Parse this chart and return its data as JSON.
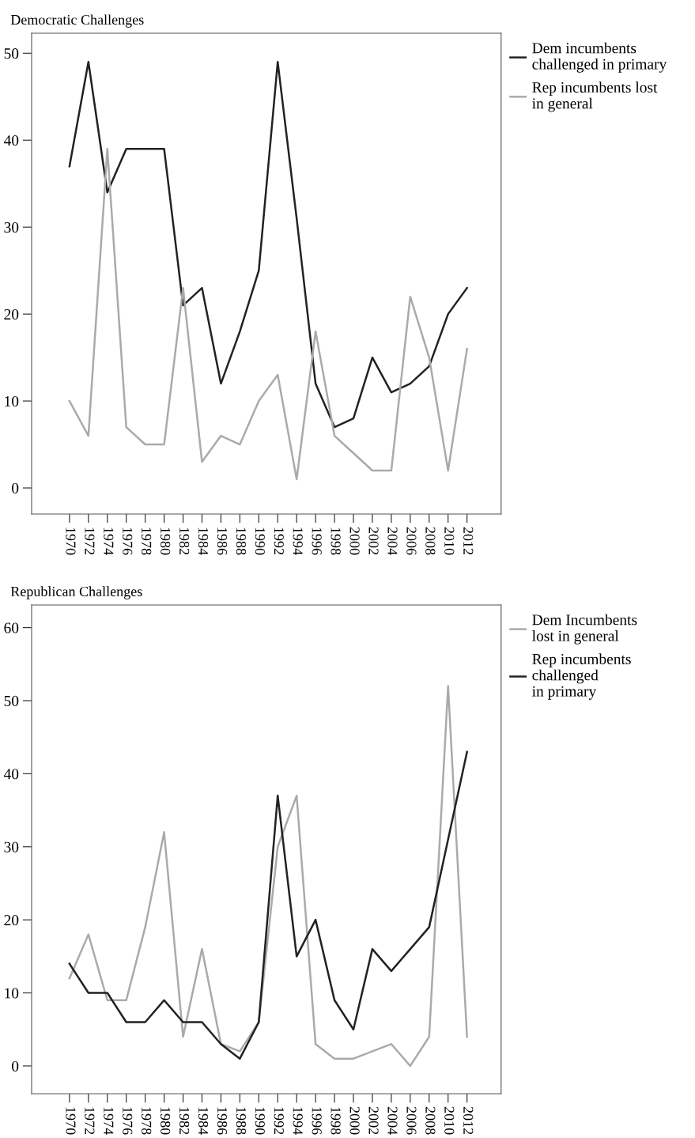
{
  "chart_data": [
    {
      "type": "line",
      "title": "Democratic Challenges",
      "categories": [
        "1970",
        "1972",
        "1974",
        "1976",
        "1978",
        "1980",
        "1982",
        "1984",
        "1986",
        "1988",
        "1990",
        "1992",
        "1994",
        "1996",
        "1998",
        "2000",
        "2002",
        "2004",
        "2006",
        "2008",
        "2010",
        "2012"
      ],
      "series": [
        {
          "name": "Dem incumbents\nchallenged in primary",
          "color": "#222222",
          "values": [
            37,
            49,
            34,
            39,
            39,
            39,
            21,
            23,
            12,
            18,
            25,
            49,
            31,
            12,
            7,
            8,
            15,
            11,
            12,
            14,
            20,
            23
          ]
        },
        {
          "name": "Rep incumbents lost\nin general",
          "color": "#aaaaaa",
          "values": [
            10,
            6,
            39,
            7,
            5,
            5,
            23,
            3,
            6,
            5,
            10,
            13,
            1,
            18,
            6,
            4,
            2,
            2,
            22,
            15,
            2,
            16
          ]
        }
      ],
      "ylim": [
        -3,
        52.3
      ],
      "yticks": [
        0,
        10,
        20,
        30,
        40,
        50
      ],
      "grid": false,
      "legend": "top right",
      "marker": "none",
      "line_style": "solid"
    },
    {
      "type": "line",
      "title": "Republican Challenges",
      "categories": [
        "1970",
        "1972",
        "1974",
        "1976",
        "1978",
        "1980",
        "1982",
        "1984",
        "1986",
        "1988",
        "1990",
        "1992",
        "1994",
        "1996",
        "1998",
        "2000",
        "2002",
        "2004",
        "2006",
        "2008",
        "2010",
        "2012"
      ],
      "series": [
        {
          "name": "Dem Incumbents\nlost in general",
          "color": "#aaaaaa",
          "values": [
            12,
            18,
            9,
            9,
            19,
            32,
            4,
            16,
            3,
            2,
            6,
            30,
            37,
            3,
            1,
            1,
            2,
            3,
            0,
            4,
            52,
            4
          ]
        },
        {
          "name": "Rep incumbents\nchallenged\nin primary",
          "color": "#222222",
          "values": [
            14,
            10,
            10,
            6,
            6,
            9,
            6,
            6,
            3,
            1,
            6,
            37,
            15,
            20,
            9,
            5,
            16,
            13,
            16,
            19,
            31,
            43
          ]
        }
      ],
      "ylim": [
        -3.8,
        63.1
      ],
      "yticks": [
        0,
        10,
        20,
        30,
        40,
        50,
        60
      ],
      "grid": false,
      "legend": "top right",
      "marker": "none",
      "line_style": "solid"
    }
  ]
}
